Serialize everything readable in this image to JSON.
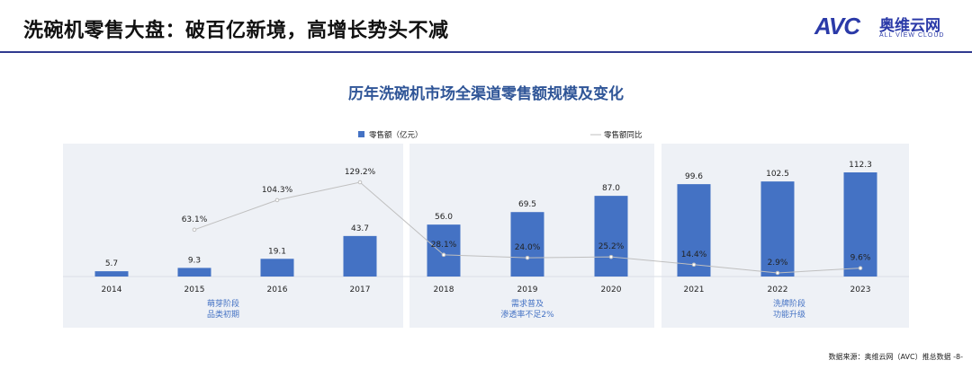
{
  "page": {
    "title": "洗碗机零售大盘：破百亿新境，高增长势头不减",
    "source": "数据来源：奥维云网（AVC）推总数据 -8-"
  },
  "logo": {
    "mark": "AVC",
    "cn": "奥维云网",
    "en": "ALL VIEW CLOUD"
  },
  "colors": {
    "bar": "#4472c4",
    "line": "#bfbfbf",
    "panel": "#eef1f6",
    "accent": "#2f5597",
    "phase_text": "#4472c4"
  },
  "chart_data": {
    "type": "bar",
    "title": "历年洗碗机市场全渠道零售额规模及变化",
    "categories": [
      "2014",
      "2015",
      "2016",
      "2017",
      "2018",
      "2019",
      "2020",
      "2021",
      "2022",
      "2023"
    ],
    "series": [
      {
        "name": "零售额（亿元）",
        "kind": "bar",
        "values": [
          5.7,
          9.3,
          19.1,
          43.7,
          56.0,
          69.5,
          87.0,
          99.6,
          102.5,
          112.3
        ],
        "labels": [
          "5.7",
          "9.3",
          "19.1",
          "43.7",
          "56.0",
          "69.5",
          "87.0",
          "99.6",
          "102.5",
          "112.3"
        ]
      },
      {
        "name": "零售额同比",
        "kind": "line",
        "values": [
          null,
          63.1,
          104.3,
          129.2,
          28.1,
          24.0,
          25.2,
          14.4,
          2.9,
          9.6
        ],
        "labels": [
          "",
          "63.1%",
          "104.3%",
          "129.2%",
          "28.1%",
          "24.0%",
          "25.2%",
          "14.4%",
          "2.9%",
          "9.6%"
        ]
      }
    ],
    "legend_position": "top",
    "phases": [
      {
        "label_lines": [
          "萌芽阶段",
          "品类初期"
        ]
      },
      {
        "label_lines": [
          "需求普及",
          "渗透率不足2%"
        ]
      },
      {
        "label_lines": [
          "洗牌阶段",
          "功能升级"
        ]
      }
    ]
  }
}
